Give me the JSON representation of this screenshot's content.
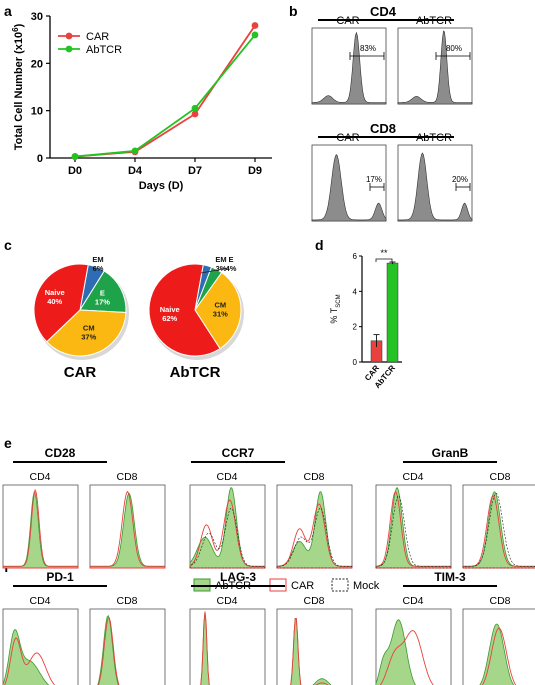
{
  "colors": {
    "car": "#e8413e",
    "abtcr": "#22c322",
    "naive": "#ee1b1b",
    "cm": "#fbb812",
    "e": "#1fa34a",
    "em": "#2e6db3",
    "gray_fill": "#8c8c8c",
    "green_fill": "#a5d68a",
    "green_line": "#3c9a30"
  },
  "panel_labels": {
    "a": "a",
    "b": "b",
    "c": "c",
    "d": "d",
    "e": "e",
    "f": "f"
  },
  "chart_data": [
    {
      "id": "a",
      "type": "line",
      "categories": [
        "D0",
        "D4",
        "D7",
        "D9"
      ],
      "xlabel": "Days (D)",
      "ylabel_main": "Total Cell Number (x10",
      "ylabel_sup": "6",
      "ylabel_close": ")",
      "ylim": [
        0,
        30
      ],
      "yticks": [
        "0",
        "10",
        "20",
        "30"
      ],
      "grid": false,
      "legend_position": "top-left",
      "series": [
        {
          "name": "CAR",
          "values": [
            0.3,
            1.3,
            9.3,
            28.0
          ]
        },
        {
          "name": "AbTCR",
          "values": [
            0.3,
            1.5,
            10.5,
            26.0
          ]
        }
      ]
    },
    {
      "id": "b",
      "type": "area",
      "groups": [
        {
          "title": "CD4",
          "panels": [
            {
              "label": "CAR",
              "gate_percent": "83%"
            },
            {
              "label": "AbTCR",
              "gate_percent": "80%"
            }
          ]
        },
        {
          "title": "CD8",
          "panels": [
            {
              "label": "CAR",
              "gate_percent": "17%"
            },
            {
              "label": "AbTCR",
              "gate_percent": "20%"
            }
          ]
        }
      ]
    },
    {
      "id": "c",
      "type": "pie",
      "pies": [
        {
          "title": "CAR",
          "slices": [
            {
              "name": "EM",
              "value": 6,
              "label": "6%"
            },
            {
              "name": "E",
              "value": 17,
              "label": "17%"
            },
            {
              "name": "CM",
              "value": 37,
              "label": "37%"
            },
            {
              "name": "Naive",
              "value": 40,
              "label": "40%"
            }
          ]
        },
        {
          "title": "AbTCR",
          "slices": [
            {
              "name": "EM",
              "value": 3,
              "label": "3%"
            },
            {
              "name": "E",
              "value": 4,
              "label": "4%"
            },
            {
              "name": "CM",
              "value": 31,
              "label": "31%"
            },
            {
              "name": "Naive",
              "value": 62,
              "label": "62%"
            }
          ]
        }
      ]
    },
    {
      "id": "d",
      "type": "bar",
      "categories": [
        "CAR",
        "AbTCR"
      ],
      "values": [
        1.2,
        5.6
      ],
      "errors": [
        0.35,
        0.06
      ],
      "ylabel_main": "% T",
      "ylabel_sub": "SCM",
      "ylim": [
        0,
        6
      ],
      "yticks": [
        "0",
        "2",
        "4",
        "6"
      ],
      "significance": "**"
    },
    {
      "id": "e",
      "type": "area",
      "markers": [
        {
          "name": "CD28",
          "panels": [
            "CD4",
            "CD8"
          ]
        },
        {
          "name": "CCR7",
          "panels": [
            "CD4",
            "CD8"
          ]
        },
        {
          "name": "GranB",
          "panels": [
            "CD4",
            "CD8"
          ]
        }
      ],
      "legend": [
        "AbTCR",
        "CAR",
        "Mock"
      ]
    },
    {
      "id": "f",
      "type": "area",
      "markers": [
        {
          "name": "PD-1",
          "panels": [
            "CD4",
            "CD8"
          ]
        },
        {
          "name": "LAG-3",
          "panels": [
            "CD4",
            "CD8"
          ]
        },
        {
          "name": "TIM-3",
          "panels": [
            "CD4",
            "CD8"
          ]
        }
      ],
      "legend": [
        "AbTCR",
        "CAR"
      ]
    }
  ]
}
